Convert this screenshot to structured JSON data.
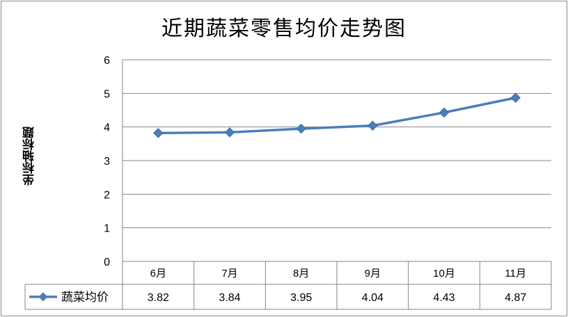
{
  "chart_data": {
    "type": "line",
    "title": "近期蔬菜零售均价走势图",
    "xlabel": "",
    "ylabel": "坐标轴标题",
    "categories": [
      "6月",
      "7月",
      "8月",
      "9月",
      "10月",
      "11月"
    ],
    "series": [
      {
        "name": "蔬菜均价",
        "values": [
          3.82,
          3.84,
          3.95,
          4.04,
          4.43,
          4.87
        ],
        "color": "#4a7ebb",
        "marker": "diamond"
      }
    ],
    "value_labels": [
      "3.82",
      "3.84",
      "3.95",
      "4.04",
      "4.43",
      "4.87"
    ],
    "ylim": [
      0,
      6
    ],
    "yticks": [
      0,
      1,
      2,
      3,
      4,
      5,
      6
    ],
    "grid": true,
    "legend": "data-table-left",
    "colors": {
      "series": "#4a7ebb",
      "grid": "#868686",
      "axis": "#868686"
    }
  }
}
